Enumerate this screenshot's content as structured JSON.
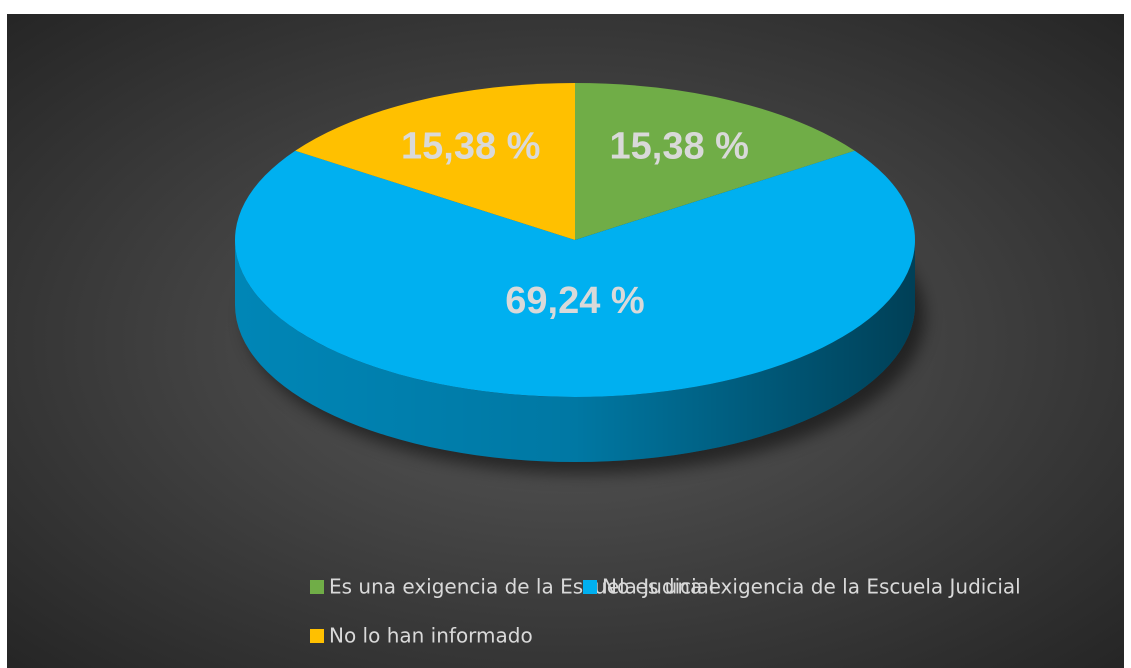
{
  "chart_data": {
    "type": "pie",
    "categories": [
      "Es una exigencia de la Escuela Judicial",
      "No es una exigencia de la Escuela Judicial",
      "No lo han informado"
    ],
    "values": [
      15.38,
      69.24,
      15.38
    ],
    "value_labels": [
      "15,38 %",
      "69,24 %",
      "15,38 %"
    ],
    "colors": [
      "#70ad47",
      "#00b0f0",
      "#ffc000"
    ],
    "legend": "bottom"
  }
}
